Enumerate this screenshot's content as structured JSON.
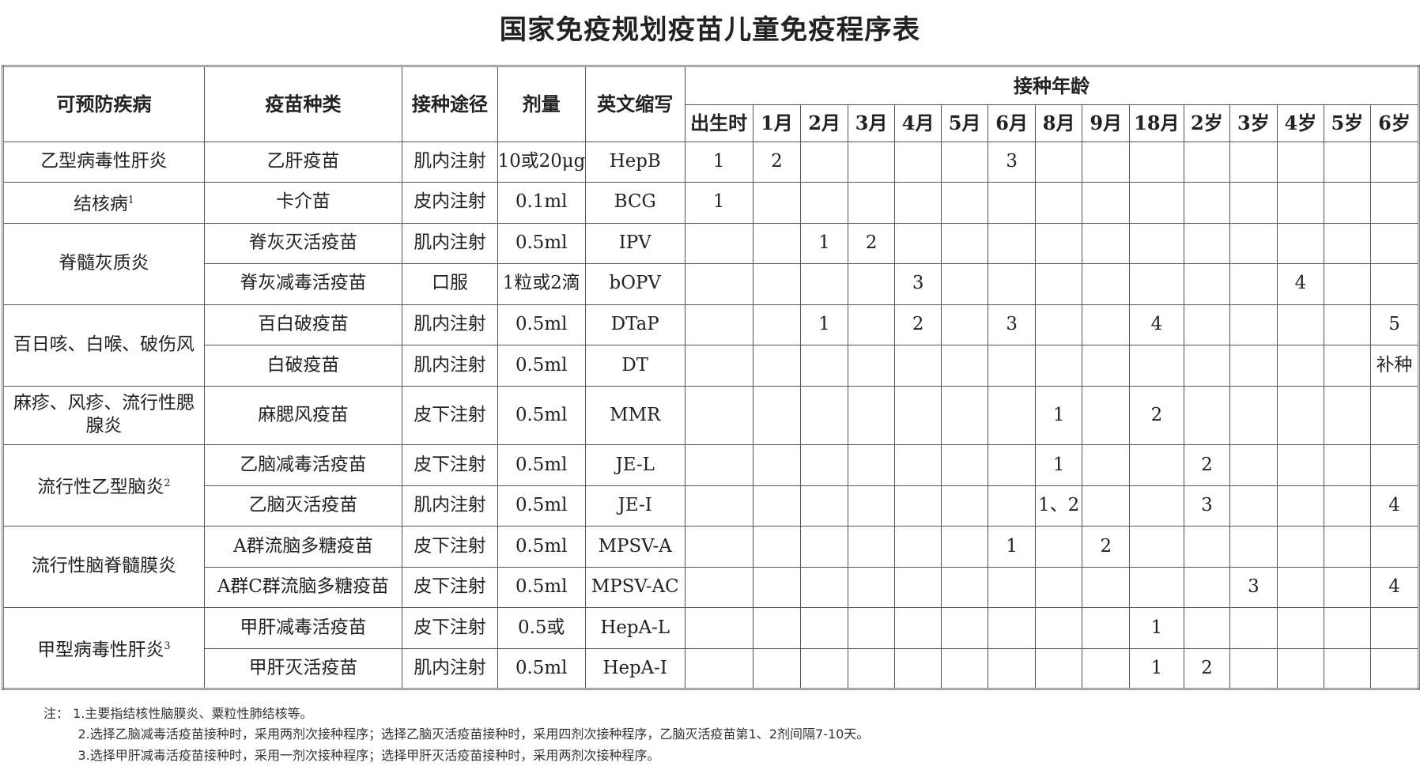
{
  "title": "国家免疫规划疫苗儿童免疫程序表",
  "headers": {
    "disease": "可预防疾病",
    "vaccine": "疫苗种类",
    "route": "接种途径",
    "dose": "剂量",
    "abbr": "英文缩写",
    "age_group": "接种年龄",
    "ages": [
      "出生时",
      "1月",
      "2月",
      "3月",
      "4月",
      "5月",
      "6月",
      "8月",
      "9月",
      "18月",
      "2岁",
      "3岁",
      "4岁",
      "5岁",
      "6岁"
    ]
  },
  "groups": [
    {
      "disease": "乙型病毒性肝炎",
      "sup": "",
      "rows": [
        {
          "vaccine": "乙肝疫苗",
          "route": "肌内注射",
          "dose": "10或20μg",
          "abbr": "HepB",
          "doses": [
            "1",
            "2",
            "",
            "",
            "",
            "",
            "3",
            "",
            "",
            "",
            "",
            "",
            "",
            "",
            ""
          ]
        }
      ]
    },
    {
      "disease": "结核病",
      "sup": "1",
      "rows": [
        {
          "vaccine": "卡介苗",
          "route": "皮内注射",
          "dose": "0.1ml",
          "abbr": "BCG",
          "doses": [
            "1",
            "",
            "",
            "",
            "",
            "",
            "",
            "",
            "",
            "",
            "",
            "",
            "",
            "",
            ""
          ]
        }
      ]
    },
    {
      "disease": "脊髓灰质炎",
      "sup": "",
      "rows": [
        {
          "vaccine": "脊灰灭活疫苗",
          "route": "肌内注射",
          "dose": "0.5ml",
          "abbr": "IPV",
          "doses": [
            "",
            "",
            "1",
            "2",
            "",
            "",
            "",
            "",
            "",
            "",
            "",
            "",
            "",
            "",
            ""
          ]
        },
        {
          "vaccine": "脊灰减毒活疫苗",
          "route": "口服",
          "dose": "1粒或2滴",
          "abbr": "bOPV",
          "doses": [
            "",
            "",
            "",
            "",
            "3",
            "",
            "",
            "",
            "",
            "",
            "",
            "",
            "4",
            "",
            ""
          ]
        }
      ]
    },
    {
      "disease": "百日咳、白喉、破伤风",
      "sup": "",
      "rows": [
        {
          "vaccine": "百白破疫苗",
          "route": "肌内注射",
          "dose": "0.5ml",
          "abbr": "DTaP",
          "doses": [
            "",
            "",
            "1",
            "",
            "2",
            "",
            "3",
            "",
            "",
            "4",
            "",
            "",
            "",
            "",
            "5"
          ]
        },
        {
          "vaccine": "白破疫苗",
          "route": "肌内注射",
          "dose": "0.5ml",
          "abbr": "DT",
          "doses": [
            "",
            "",
            "",
            "",
            "",
            "",
            "",
            "",
            "",
            "",
            "",
            "",
            "",
            "",
            "补种"
          ]
        }
      ]
    },
    {
      "disease": "麻疹、风疹、流行性腮腺炎",
      "sup": "",
      "tall": true,
      "rows": [
        {
          "vaccine": "麻腮风疫苗",
          "route": "皮下注射",
          "dose": "0.5ml",
          "abbr": "MMR",
          "doses": [
            "",
            "",
            "",
            "",
            "",
            "",
            "",
            "1",
            "",
            "2",
            "",
            "",
            "",
            "",
            ""
          ]
        }
      ]
    },
    {
      "disease": "流行性乙型脑炎",
      "sup": "2",
      "rows": [
        {
          "vaccine": "乙脑减毒活疫苗",
          "route": "皮下注射",
          "dose": "0.5ml",
          "abbr": "JE-L",
          "doses": [
            "",
            "",
            "",
            "",
            "",
            "",
            "",
            "1",
            "",
            "",
            "2",
            "",
            "",
            "",
            ""
          ]
        },
        {
          "vaccine": "乙脑灭活疫苗",
          "route": "肌内注射",
          "dose": "0.5ml",
          "abbr": "JE-I",
          "doses": [
            "",
            "",
            "",
            "",
            "",
            "",
            "",
            "1、2",
            "",
            "",
            "3",
            "",
            "",
            "",
            "4"
          ]
        }
      ]
    },
    {
      "disease": "流行性脑脊髓膜炎",
      "sup": "",
      "rows": [
        {
          "vaccine": "A群流脑多糖疫苗",
          "route": "皮下注射",
          "dose": "0.5ml",
          "abbr": "MPSV-A",
          "doses": [
            "",
            "",
            "",
            "",
            "",
            "",
            "1",
            "",
            "2",
            "",
            "",
            "",
            "",
            "",
            ""
          ]
        },
        {
          "vaccine": "A群C群流脑多糖疫苗",
          "route": "皮下注射",
          "dose": "0.5ml",
          "abbr": "MPSV-AC",
          "doses": [
            "",
            "",
            "",
            "",
            "",
            "",
            "",
            "",
            "",
            "",
            "",
            "3",
            "",
            "",
            "4"
          ]
        }
      ]
    },
    {
      "disease": "甲型病毒性肝炎",
      "sup": "3",
      "rows": [
        {
          "vaccine": "甲肝减毒活疫苗",
          "route": "皮下注射",
          "dose": "0.5或",
          "abbr": "HepA-L",
          "doses": [
            "",
            "",
            "",
            "",
            "",
            "",
            "",
            "",
            "",
            "1",
            "",
            "",
            "",
            "",
            ""
          ]
        },
        {
          "vaccine": "甲肝灭活疫苗",
          "route": "肌内注射",
          "dose": "0.5ml",
          "abbr": "HepA-I",
          "doses": [
            "",
            "",
            "",
            "",
            "",
            "",
            "",
            "",
            "",
            "1",
            "2",
            "",
            "",
            "",
            ""
          ]
        }
      ]
    }
  ],
  "notes": {
    "label": "注：",
    "items": [
      "1.主要指结核性脑膜炎、粟粒性肺结核等。",
      "2.选择乙脑减毒活疫苗接种时，采用两剂次接种程序；选择乙脑灭活疫苗接种时，采用四剂次接种程序，乙脑灭活疫苗第1、2剂间隔7-10天。",
      "3.选择甲肝减毒活疫苗接种时，采用一剂次接种程序；选择甲肝灭活疫苗接种时，采用两剂次接种程序。"
    ]
  }
}
